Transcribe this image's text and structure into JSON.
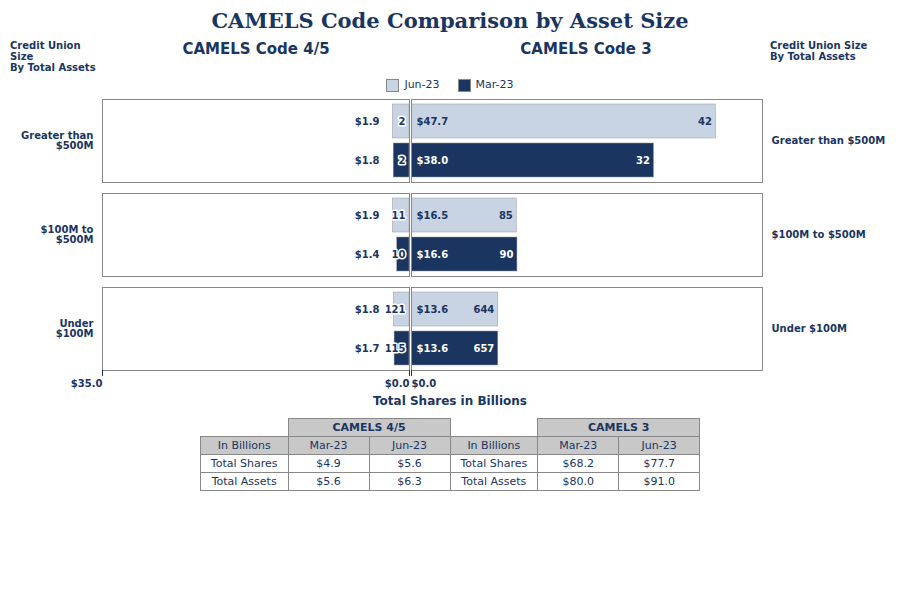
{
  "title": "CAMELS Code Comparison by Asset Size",
  "xlabel": "Total Shares in Billions",
  "legend": "top",
  "chart_data": [
    {
      "type": "bar",
      "orientation": "horizontal",
      "title": "CAMELS Code 4/5",
      "annotations": [
        "Credit Union Size\nBy Total Assets"
      ],
      "categories": [
        "Greater than\n$500M",
        "$100M to\n$500M",
        "Under\n$100M"
      ],
      "series": [
        {
          "name": "Jun-23",
          "color": "#c8d4e3",
          "values": [
            1.9,
            1.9,
            1.8
          ],
          "value_labels": [
            "$1.9",
            "$1.9",
            "$1.8"
          ],
          "counts": [
            2,
            11,
            121
          ]
        },
        {
          "name": "Mar-23",
          "color": "#1a3560",
          "values": [
            1.8,
            1.4,
            1.7
          ],
          "value_labels": [
            "$1.8",
            "$1.4",
            "$1.7"
          ],
          "counts": [
            2,
            10,
            115
          ]
        }
      ],
      "xlim": [
        35,
        0
      ],
      "xticks": [
        {
          "value": 0,
          "label": "$0.0"
        },
        {
          "value": 35,
          "label": "$35.0"
        }
      ],
      "data_labels": true,
      "grid": false,
      "table": {
        "title": "CAMELS 4/5",
        "header": "In Billions",
        "columns": [
          "Mar-23",
          "Jun-23"
        ],
        "rows": [
          {
            "name": "Total Shares",
            "values": [
              4.9,
              5.6
            ],
            "value_labels": [
              "$4.9",
              "$5.6"
            ]
          },
          {
            "name": "Total Assets",
            "values": [
              5.6,
              6.3
            ],
            "value_labels": [
              "$5.6",
              "$6.3"
            ]
          }
        ]
      }
    },
    {
      "type": "bar",
      "orientation": "horizontal",
      "title": "CAMELS Code 3",
      "annotations": [
        "Credit Union Size\nBy Total Assets"
      ],
      "categories": [
        "Greater than $500M",
        "$100M to $500M",
        "Under $100M"
      ],
      "series": [
        {
          "name": "Jun-23",
          "color": "#c8d4e3",
          "values": [
            47.7,
            16.5,
            13.6
          ],
          "value_labels": [
            "$47.7",
            "$16.5",
            "$13.6"
          ],
          "counts": [
            42,
            85,
            644
          ]
        },
        {
          "name": "Mar-23",
          "color": "#1a3560",
          "values": [
            38.0,
            16.6,
            13.6
          ],
          "value_labels": [
            "$38.0",
            "$16.6",
            "$13.6"
          ],
          "counts": [
            32,
            90,
            657
          ]
        }
      ],
      "xlim": [
        0,
        55
      ],
      "xticks": [
        {
          "value": 0,
          "label": "$0.0"
        }
      ],
      "data_labels": true,
      "grid": false,
      "table": {
        "title": "CAMELS 3",
        "header": "In Billions",
        "columns": [
          "Mar-23",
          "Jun-23"
        ],
        "rows": [
          {
            "name": "Total Shares",
            "values": [
              68.2,
              77.7
            ],
            "value_labels": [
              "$68.2",
              "$77.7"
            ]
          },
          {
            "name": "Total Assets",
            "values": [
              80.0,
              91.0
            ],
            "value_labels": [
              "$80.0",
              "$91.0"
            ]
          }
        ]
      }
    }
  ]
}
